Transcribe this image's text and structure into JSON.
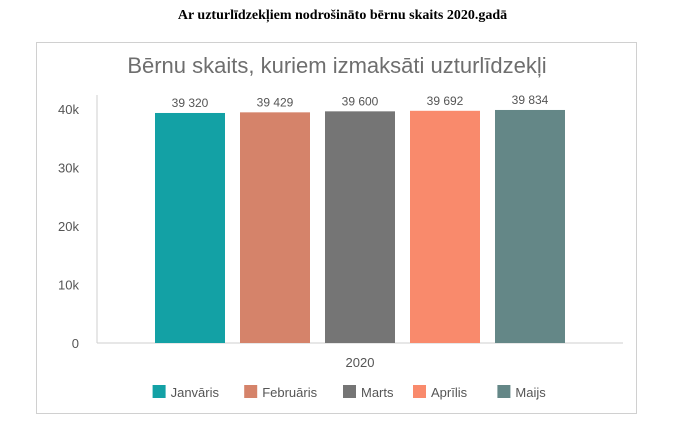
{
  "page_title": "Ar uzturlīdzekļiem nodrošināto bērnu skaits 2020.gadā",
  "chart_data": {
    "type": "bar",
    "title": "Bērnu skaits, kuriem izmaksāti uzturlīdzekļi",
    "categories": [
      "2020"
    ],
    "series": [
      {
        "name": "Janvāris",
        "values": [
          39320
        ],
        "label": "39 320",
        "color": "#13a1a5"
      },
      {
        "name": "Februāris",
        "values": [
          39429
        ],
        "label": "39 429",
        "color": "#d5836a"
      },
      {
        "name": "Marts",
        "values": [
          39600
        ],
        "label": "39 600",
        "color": "#757575"
      },
      {
        "name": "Aprīlis",
        "values": [
          39692
        ],
        "label": "39 692",
        "color": "#f98a6c"
      },
      {
        "name": "Maijs",
        "values": [
          39834
        ],
        "label": "39 834",
        "color": "#648787"
      }
    ],
    "ylim": [
      0,
      40000
    ],
    "y_ticks": [
      {
        "value": 0,
        "label": "0"
      },
      {
        "value": 10000,
        "label": "10k"
      },
      {
        "value": 20000,
        "label": "20k"
      },
      {
        "value": 30000,
        "label": "30k"
      },
      {
        "value": 40000,
        "label": "40k"
      }
    ],
    "grid": false,
    "legend_position": "bottom"
  }
}
